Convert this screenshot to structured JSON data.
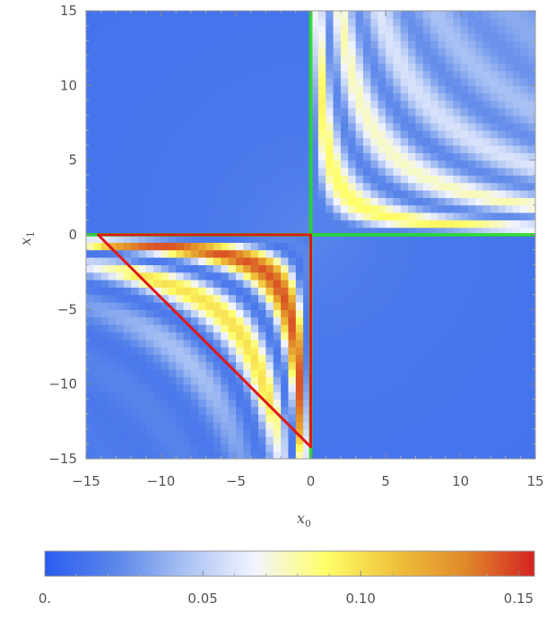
{
  "chart_data": {
    "type": "heatmap",
    "title": "",
    "xlabel": "x",
    "xlabel_sub": "0",
    "ylabel": "x",
    "ylabel_sub": "1",
    "xlim": [
      -15,
      15
    ],
    "ylim": [
      -15,
      15
    ],
    "x_ticks": [
      -15,
      -10,
      -5,
      0,
      5,
      10,
      15
    ],
    "y_ticks": [
      -15,
      -10,
      -5,
      0,
      5,
      10,
      15
    ],
    "x_tick_labels": [
      "−15",
      "−10",
      "−5",
      "0",
      "5",
      "10",
      "15"
    ],
    "y_tick_labels": [
      "−15",
      "−10",
      "−5",
      "0",
      "5",
      "10",
      "15"
    ],
    "colorbar": {
      "range": [
        0,
        0.155
      ],
      "ticks": [
        0,
        0.05,
        0.1,
        0.15
      ],
      "tick_labels": [
        "0.",
        "0.05",
        "0.10",
        "0.15"
      ],
      "colors": [
        "#2b5cf0",
        "#5a86ea",
        "#a9c1f3",
        "#f2f4ff",
        "#ffff6a",
        "#f0c23c",
        "#e08a2a",
        "#d42222"
      ]
    },
    "overlays": [
      {
        "name": "green-axis-x0",
        "color": "#22dd22",
        "points": [
          [
            0,
            -15
          ],
          [
            0,
            15
          ]
        ]
      },
      {
        "name": "green-axis-x1",
        "color": "#22dd22",
        "points": [
          [
            -15,
            0
          ],
          [
            15,
            0
          ]
        ]
      },
      {
        "name": "red-triangle",
        "color": "#e01818",
        "points": [
          [
            -14.2,
            0
          ],
          [
            0,
            0
          ],
          [
            0,
            -14.2
          ]
        ]
      }
    ]
  }
}
